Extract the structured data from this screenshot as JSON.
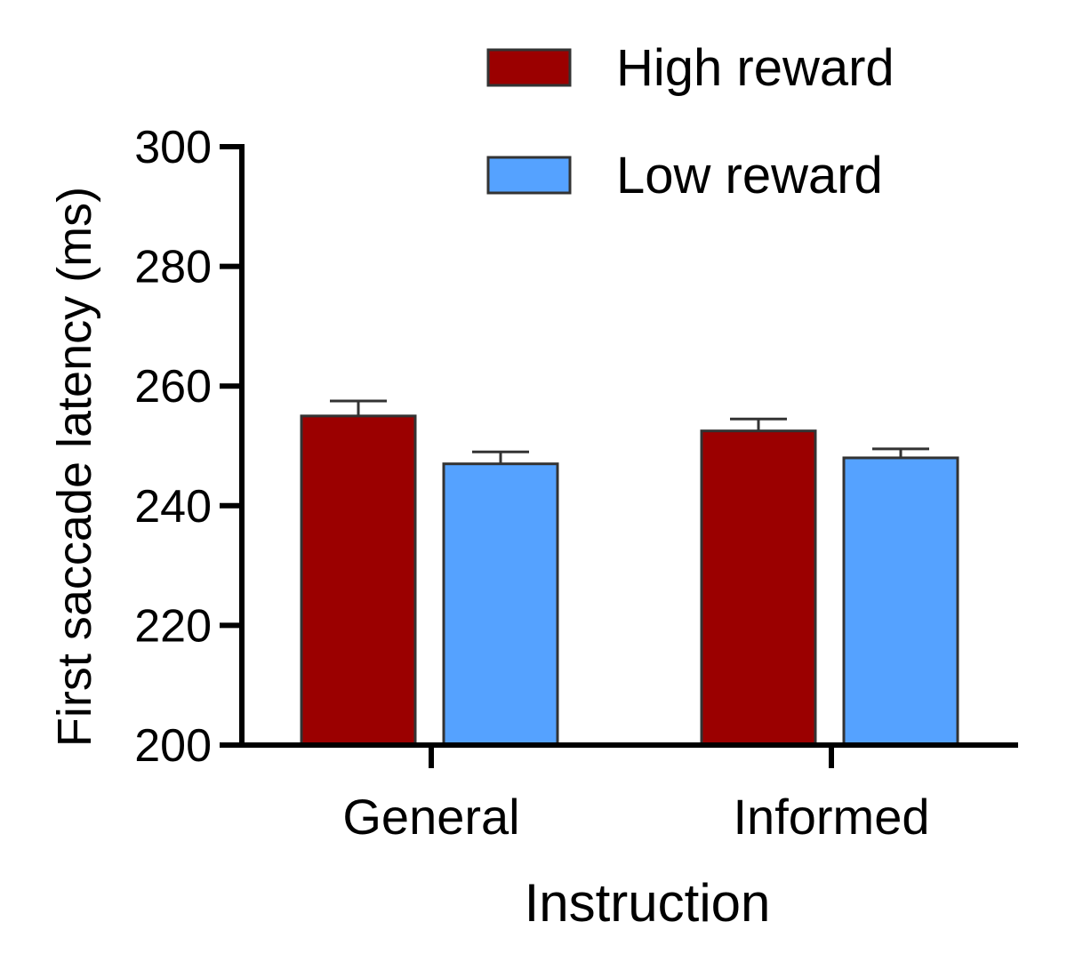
{
  "chart_data": {
    "type": "bar",
    "title": "",
    "xlabel": "Instruction",
    "ylabel": "First saccade latency (ms)",
    "ylim": [
      200,
      300
    ],
    "yticks": [
      200,
      220,
      240,
      260,
      280,
      300
    ],
    "categories": [
      "General",
      "Informed"
    ],
    "series": [
      {
        "name": "High reward",
        "color": "#9b0000",
        "values": [
          255,
          252.5
        ],
        "errors": [
          2.5,
          2
        ]
      },
      {
        "name": "Low reward",
        "color": "#55a2ff",
        "values": [
          247,
          248
        ],
        "errors": [
          2,
          1.5
        ]
      }
    ],
    "legend": "top-right",
    "grid": false
  }
}
